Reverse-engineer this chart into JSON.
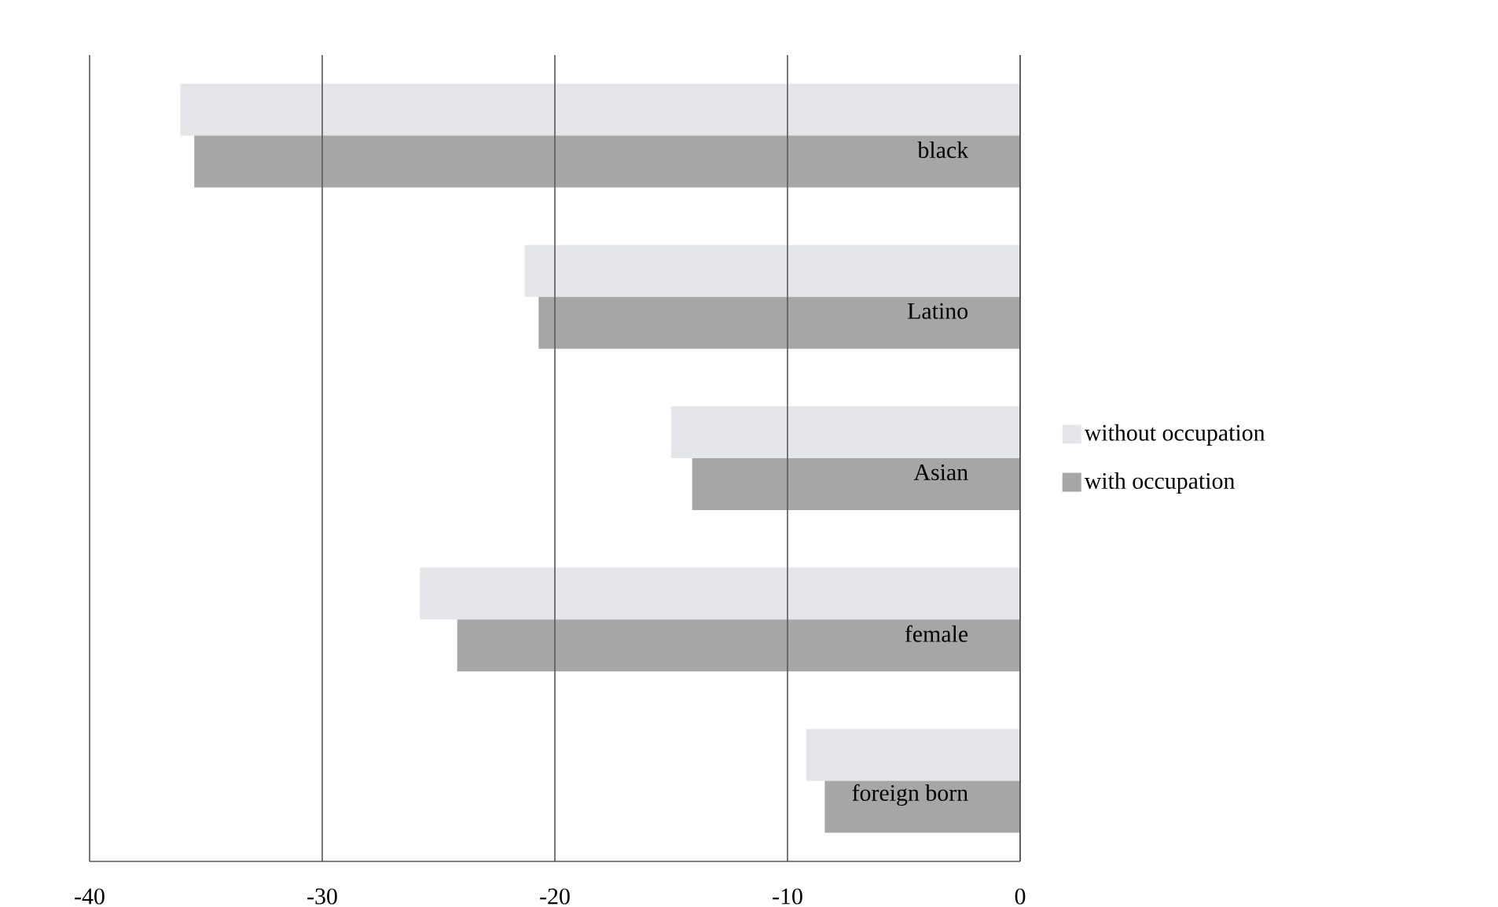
{
  "chart_data": {
    "type": "bar",
    "orientation": "horizontal",
    "categories": [
      "black",
      "Latino",
      "Asian",
      "female",
      "foreign born"
    ],
    "series": [
      {
        "name": "without occupation",
        "color": "#e4e6e9",
        "values": [
          -36.1,
          -21.3,
          -15.0,
          -25.8,
          -9.2
        ]
      },
      {
        "name": "with occupation",
        "color": "#a6a6a6",
        "values": [
          -35.5,
          -20.7,
          -14.1,
          -24.2,
          -8.4
        ]
      }
    ],
    "xlim": [
      -40,
      0
    ],
    "xticks": [
      -40,
      -30,
      -20,
      -10,
      0
    ],
    "grid": "x",
    "legend": "right"
  }
}
